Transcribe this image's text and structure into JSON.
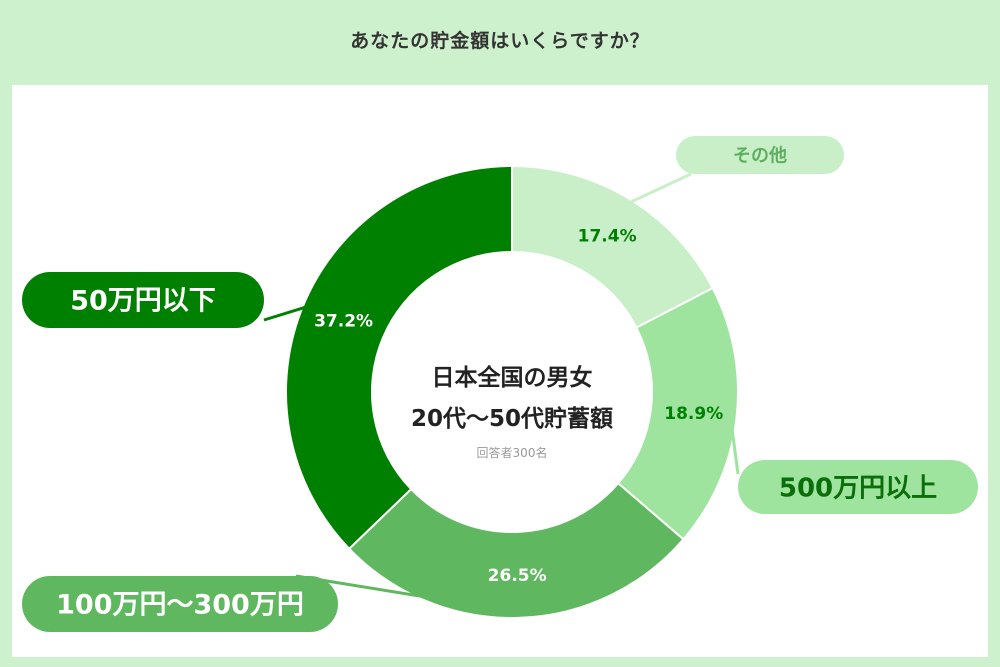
{
  "title": "あなたの貯金額はいくらですか？",
  "colors": {
    "background": "#cdf0cd",
    "panel": "#ffffff",
    "dark_green": "#008000",
    "medium_green": "#5fb85f",
    "light_green": "#9ee39e",
    "pale_green": "#c9efc9"
  },
  "chart_data": {
    "type": "pie",
    "title": "日本全国の男女",
    "subtitle": "20代〜50代貯蓄額",
    "note": "回答者300名",
    "slices": [
      {
        "label": "その他",
        "value": 17.4,
        "value_label": "17.4%",
        "color": "#c9efc9",
        "label_color": "#008000"
      },
      {
        "label": "500万円以上",
        "value": 18.9,
        "value_label": "18.9%",
        "color": "#9ee39e",
        "label_color": "#008000"
      },
      {
        "label": "100万円〜300万円",
        "value": 26.5,
        "value_label": "26.5%",
        "color": "#5fb85f",
        "label_color": "#ffffff"
      },
      {
        "label": "50万円以下",
        "value": 37.2,
        "value_label": "37.2%",
        "color": "#008000",
        "label_color": "#ffffff"
      }
    ]
  }
}
